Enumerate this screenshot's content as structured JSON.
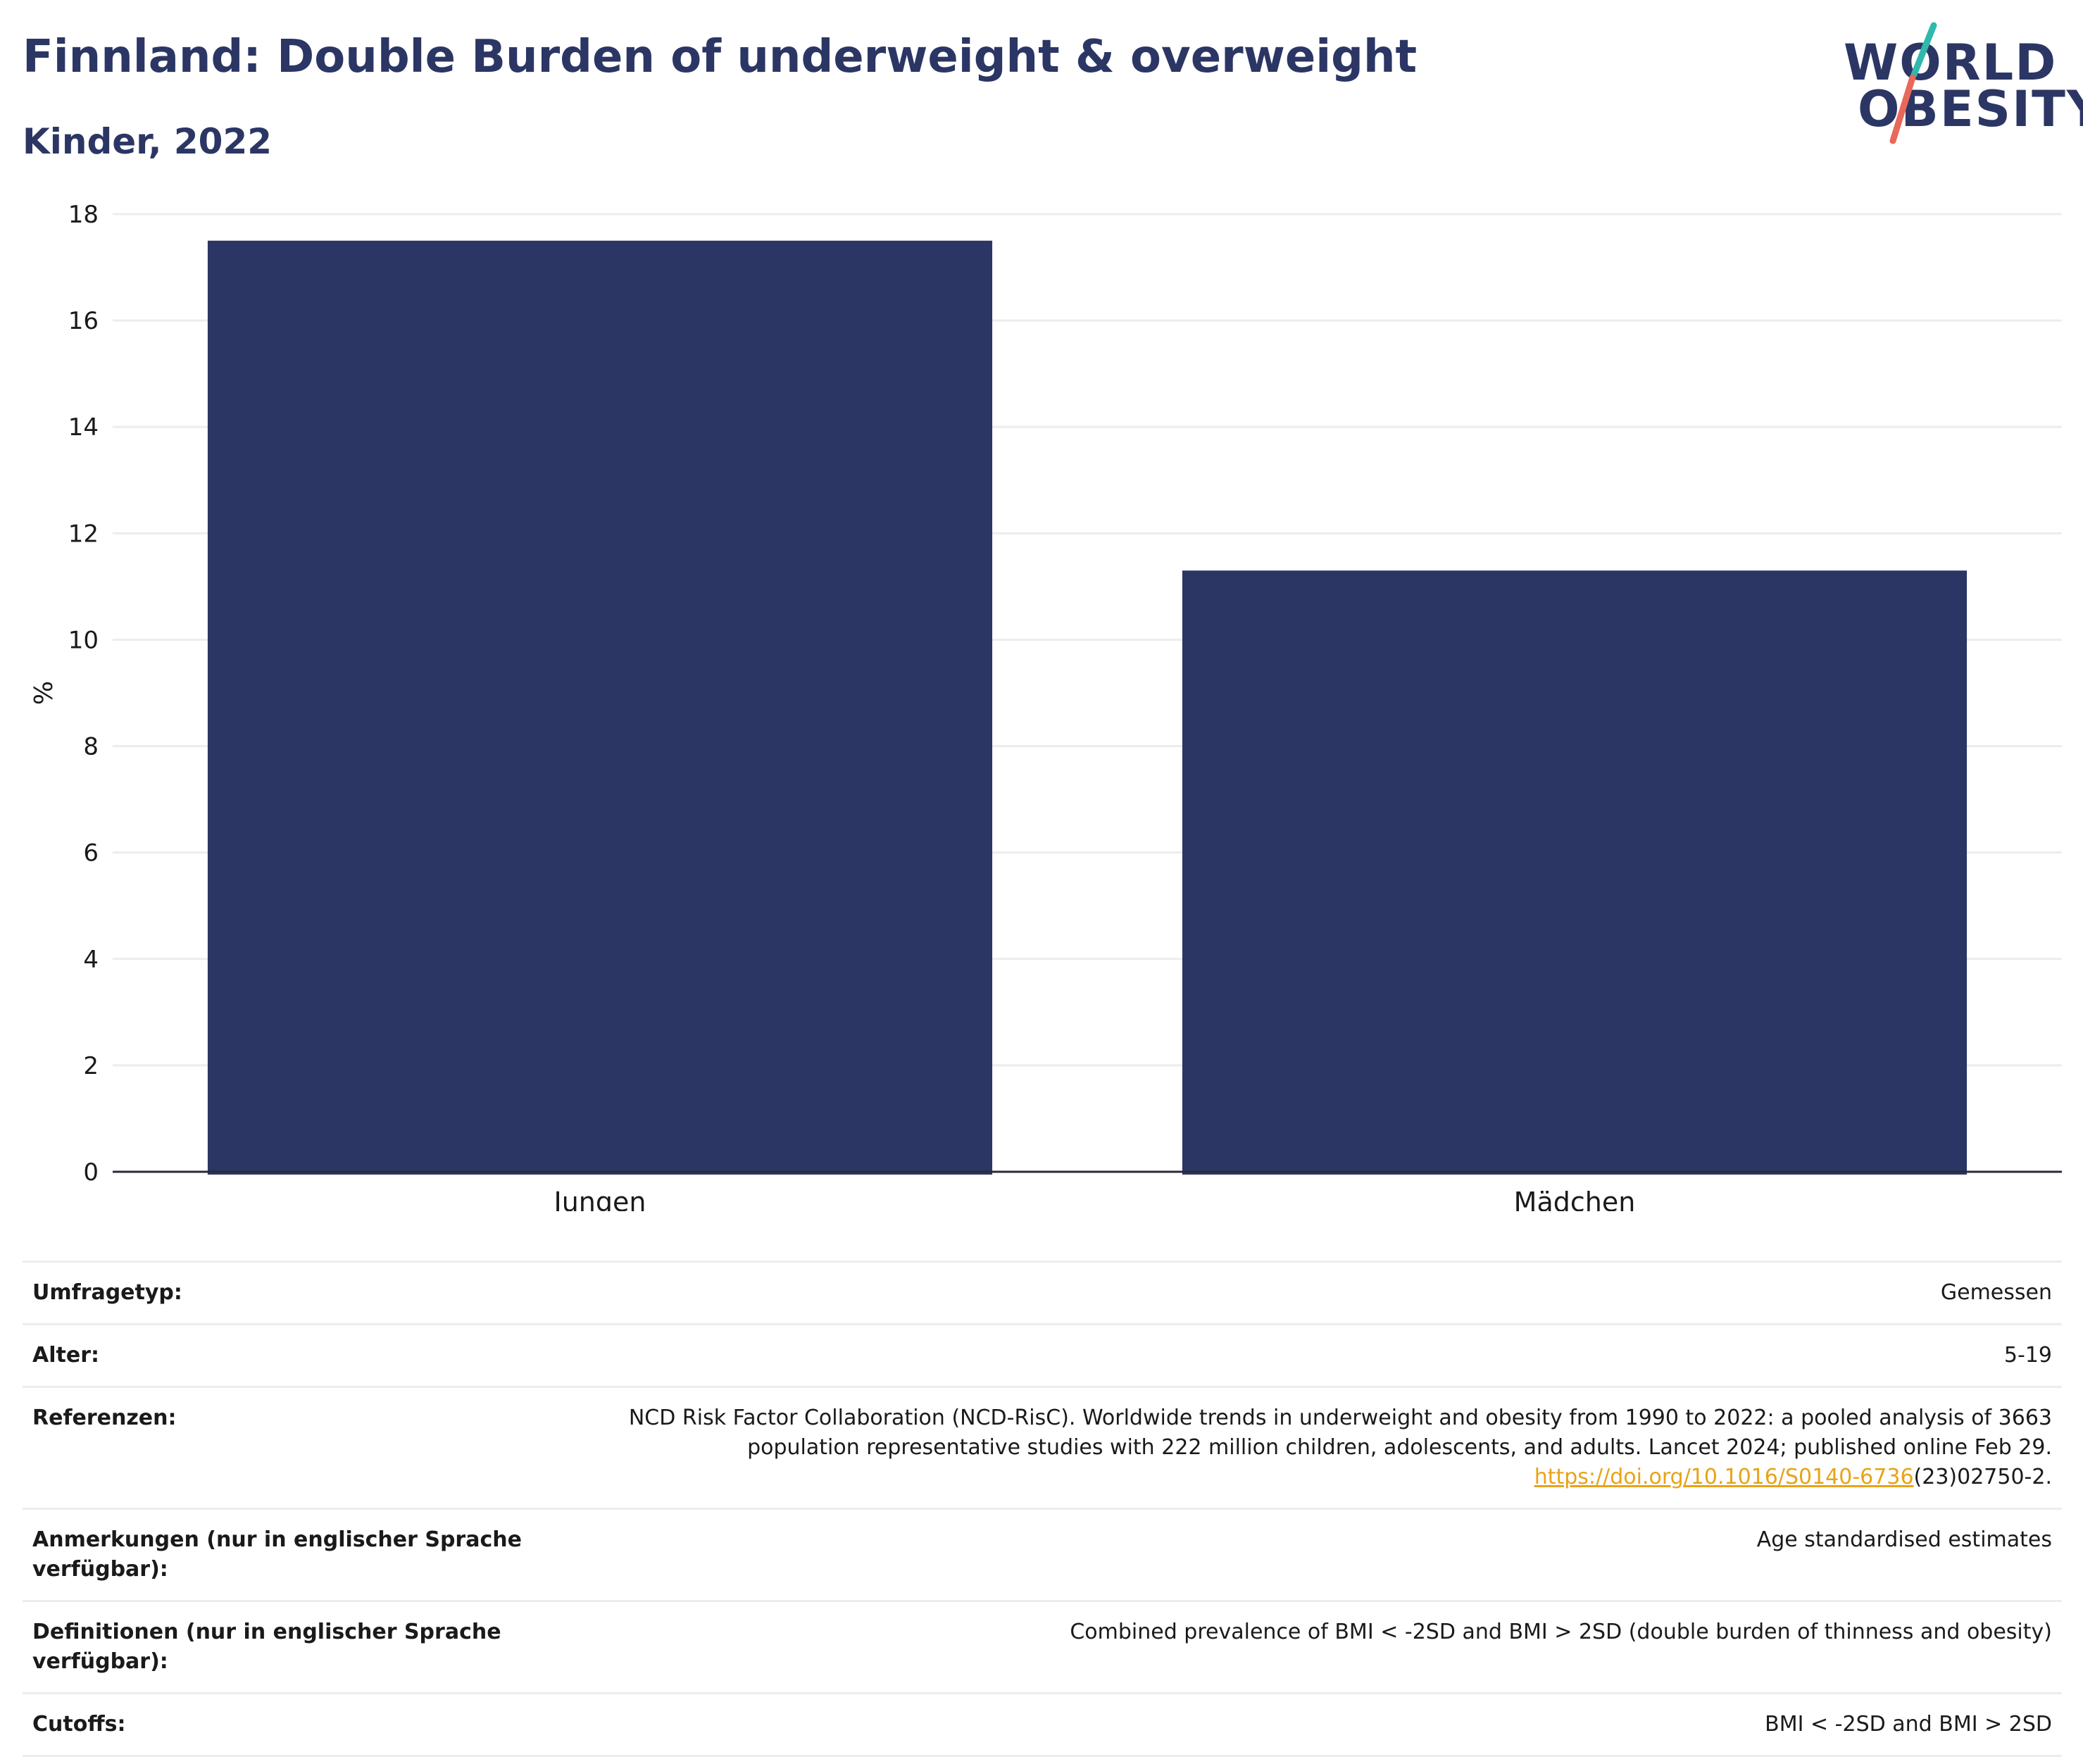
{
  "header": {
    "title": "Finnland: Double Burden of underweight & overweight",
    "subtitle": "Kinder, 2022"
  },
  "logo": {
    "line1": "WORLD",
    "line2": "OBESITY",
    "colors": {
      "navy": "#2b3664",
      "teal": "#2fb8ac",
      "coral": "#e8685a"
    }
  },
  "chart_data": {
    "type": "bar",
    "categories": [
      "Jungen",
      "Mädchen"
    ],
    "values": [
      17.5,
      11.3
    ],
    "ylabel": "%",
    "xlabel": "",
    "ylim": [
      0,
      18
    ],
    "yticks": [
      0,
      2,
      4,
      6,
      8,
      10,
      12,
      14,
      16,
      18
    ],
    "grid": true,
    "bar_color": "#2b3664"
  },
  "meta": {
    "rows": [
      {
        "key": "Umfragetyp:",
        "value": "Gemessen"
      },
      {
        "key": "Alter:",
        "value": "5-19"
      },
      {
        "key": "Referenzen:",
        "value": "NCD Risk Factor Collaboration (NCD-RisC). Worldwide trends in underweight and obesity from 1990 to 2022: a pooled analysis of 3663 population representative studies with 222 million children, adolescents, and adults. Lancet 2024; published online Feb 29.",
        "link": "https://doi.org/10.1016/S0140-6736",
        "link_suffix": "(23)02750-2."
      },
      {
        "key": "Anmerkungen (nur in englischer Sprache verfügbar):",
        "value": "Age standardised estimates"
      },
      {
        "key": "Definitionen (nur in englischer Sprache verfügbar):",
        "value": "Combined prevalence of BMI < -2SD and BMI > 2SD (double burden of thinness and obesity)"
      },
      {
        "key": "Cutoffs:",
        "value": "BMI < -2SD and BMI > 2SD"
      }
    ]
  }
}
